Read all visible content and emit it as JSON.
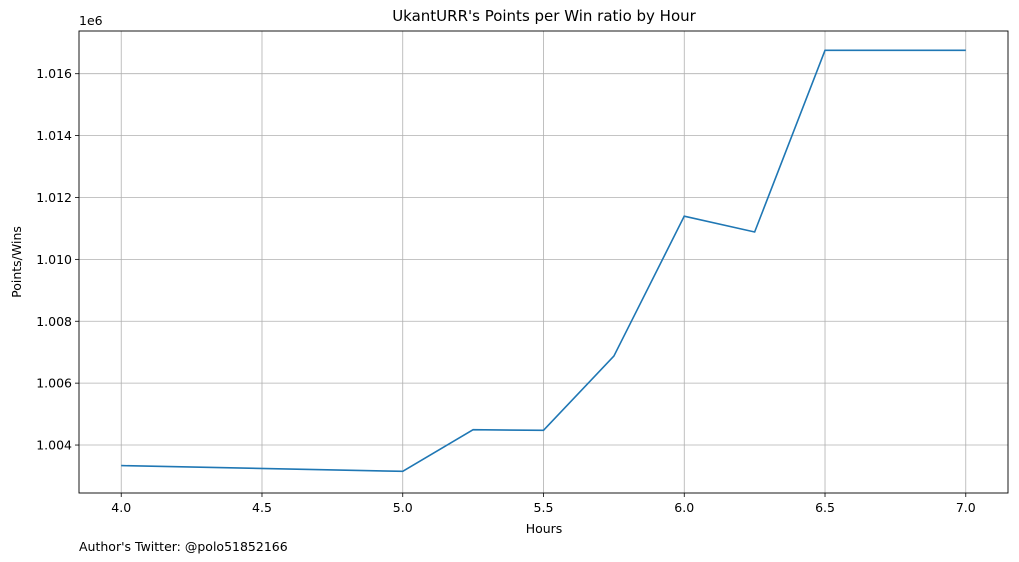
{
  "chart_data": {
    "type": "line",
    "title": "UkantURR's Points per Win ratio by Hour",
    "xlabel": "Hours",
    "ylabel": "Points/Wins",
    "y_offset_label": "1e6",
    "x": [
      4.0,
      5.0,
      5.25,
      5.5,
      5.75,
      6.0,
      6.25,
      6.5,
      7.0
    ],
    "series": [
      {
        "values": [
          1003335,
          1003150,
          1004495,
          1004475,
          1006875,
          1011395,
          1010885,
          1016755,
          1016755
        ],
        "color": "#1f77b4"
      }
    ],
    "xlim": [
      3.85,
      7.15
    ],
    "ylim": [
      1002450,
      1017380
    ],
    "x_ticks": [
      4.0,
      4.5,
      5.0,
      5.5,
      6.0,
      6.5,
      7.0
    ],
    "x_tick_labels": [
      "4.0",
      "4.5",
      "5.0",
      "5.5",
      "6.0",
      "6.5",
      "7.0"
    ],
    "y_ticks": [
      1.004,
      1.006,
      1.008,
      1.01,
      1.012,
      1.014,
      1.016
    ],
    "y_tick_labels": [
      "1.004",
      "1.006",
      "1.008",
      "1.010",
      "1.012",
      "1.014",
      "1.016"
    ],
    "grid": true,
    "legend": "none"
  },
  "footer": {
    "text": "Author's Twitter: @polo51852166"
  }
}
